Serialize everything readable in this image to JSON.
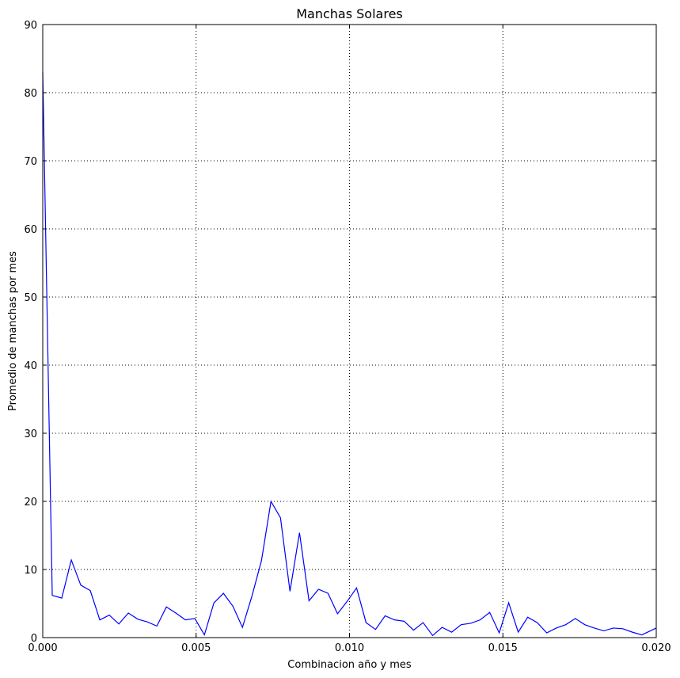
{
  "chart_data": {
    "type": "line",
    "title": "Manchas Solares",
    "xlabel": "Combinacion año y mes",
    "ylabel": "Promedio de manchas por mes",
    "xlim": [
      0,
      0.02
    ],
    "ylim": [
      0,
      90
    ],
    "grid": true,
    "grid_style": "dotted",
    "line_color": "#0000ff",
    "x_ticks": [
      {
        "value": 0.0,
        "label": "0.000"
      },
      {
        "value": 0.005,
        "label": "0.005"
      },
      {
        "value": 0.01,
        "label": "0.010"
      },
      {
        "value": 0.015,
        "label": "0.015"
      },
      {
        "value": 0.02,
        "label": "0.020"
      }
    ],
    "y_ticks": [
      {
        "value": 0,
        "label": "0"
      },
      {
        "value": 10,
        "label": "10"
      },
      {
        "value": 20,
        "label": "20"
      },
      {
        "value": 30,
        "label": "30"
      },
      {
        "value": 40,
        "label": "40"
      },
      {
        "value": 50,
        "label": "50"
      },
      {
        "value": 60,
        "label": "60"
      },
      {
        "value": 70,
        "label": "70"
      },
      {
        "value": 80,
        "label": "80"
      },
      {
        "value": 90,
        "label": "90"
      }
    ],
    "series": [
      {
        "x": [
          0.0,
          0.00031,
          0.00062,
          0.00093,
          0.00124,
          0.00155,
          0.00186,
          0.00217,
          0.00248,
          0.00279,
          0.0031,
          0.00341,
          0.00372,
          0.00403,
          0.00434,
          0.00465,
          0.00496,
          0.00527,
          0.00558,
          0.00589,
          0.0062,
          0.00651,
          0.00682,
          0.00713,
          0.00744,
          0.00775,
          0.00806,
          0.00837,
          0.00868,
          0.00899,
          0.0093,
          0.00961,
          0.00992,
          0.01023,
          0.01054,
          0.01085,
          0.01116,
          0.01147,
          0.01178,
          0.01209,
          0.0124,
          0.01271,
          0.01302,
          0.01333,
          0.01364,
          0.01395,
          0.01426,
          0.01457,
          0.01488,
          0.01519,
          0.0155,
          0.01581,
          0.01612,
          0.01643,
          0.01674,
          0.01705,
          0.01736,
          0.01767,
          0.01798,
          0.01829,
          0.0186,
          0.01891,
          0.01922,
          0.01953,
          0.02
        ],
        "y": [
          83,
          6.2,
          5.8,
          11.4,
          7.7,
          6.9,
          2.6,
          3.3,
          2.0,
          3.6,
          2.7,
          2.3,
          1.7,
          4.5,
          3.6,
          2.6,
          2.8,
          0.4,
          5.1,
          6.5,
          4.6,
          1.5,
          6.1,
          11.3,
          20.0,
          17.6,
          6.8,
          15.4,
          5.4,
          7.1,
          6.5,
          3.5,
          5.3,
          7.3,
          2.2,
          1.2,
          3.2,
          2.6,
          2.4,
          1.1,
          2.2,
          0.3,
          1.5,
          0.8,
          1.9,
          2.1,
          2.6,
          3.7,
          0.7,
          5.1,
          0.8,
          3.0,
          2.2,
          0.7,
          1.4,
          1.9,
          2.8,
          1.9,
          1.4,
          1.0,
          1.4,
          1.3,
          0.8,
          0.4,
          1.4
        ]
      }
    ]
  }
}
